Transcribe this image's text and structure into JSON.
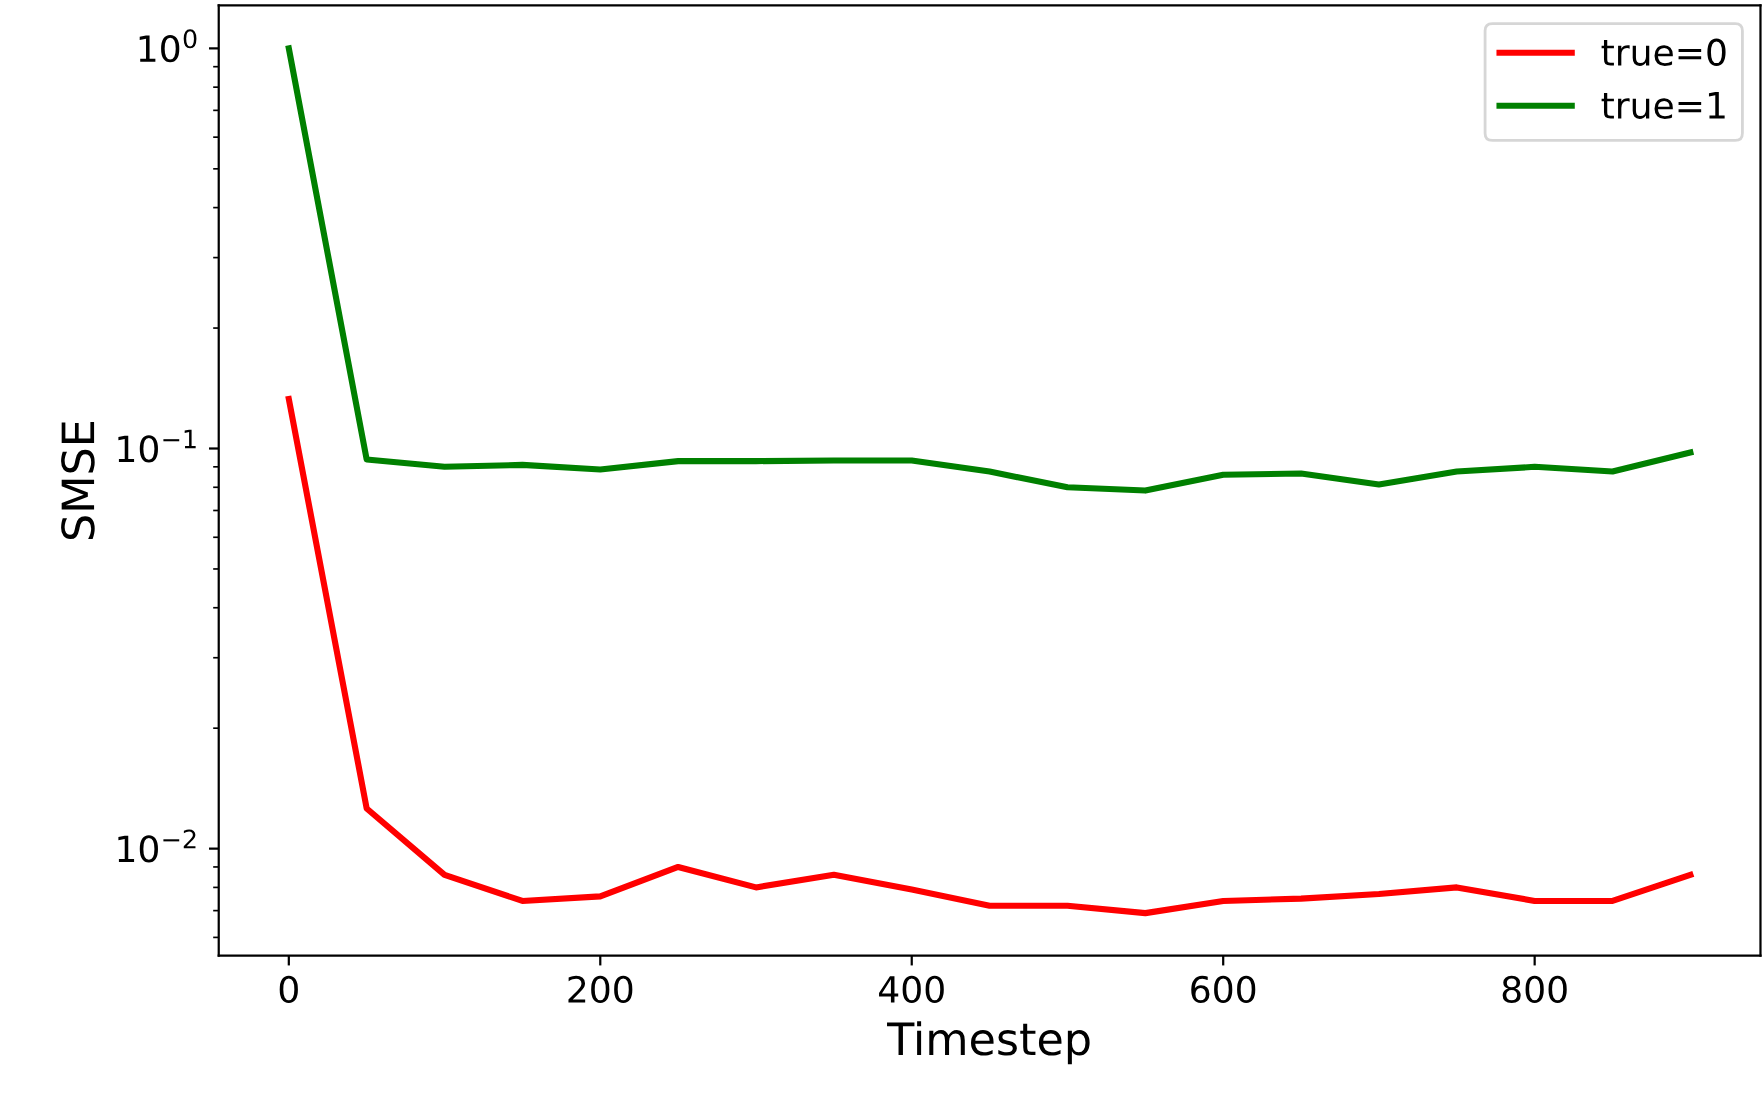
{
  "chart_data": {
    "type": "line",
    "xlabel": "Timestep",
    "ylabel": "SMSE",
    "x": [
      0,
      50,
      100,
      150,
      200,
      250,
      300,
      350,
      400,
      450,
      500,
      550,
      600,
      650,
      700,
      750,
      800,
      850,
      900
    ],
    "series": [
      {
        "name": "true=0",
        "color": "#ff0000",
        "values": [
          0.133,
          0.0126,
          0.0086,
          0.0074,
          0.0076,
          0.009,
          0.008,
          0.0086,
          0.0079,
          0.0072,
          0.0072,
          0.0069,
          0.0074,
          0.0075,
          0.0077,
          0.008,
          0.0074,
          0.0074,
          0.0086
        ]
      },
      {
        "name": "true=1",
        "color": "#008000",
        "values": [
          1.0,
          0.0939,
          0.09,
          0.091,
          0.0886,
          0.093,
          0.093,
          0.0933,
          0.0933,
          0.0876,
          0.08,
          0.0785,
          0.086,
          0.0866,
          0.0813,
          0.0876,
          0.09,
          0.0876,
          0.0977
        ]
      }
    ],
    "log": "y",
    "xlim": [
      -45,
      945
    ],
    "xticks": [
      0,
      200,
      400,
      600,
      800
    ],
    "ylim": [
      0.0054,
      1.28
    ],
    "yticks": [
      {
        "value": 0.01,
        "label": "10$^{−2}$"
      },
      {
        "value": 0.1,
        "label": "10$^{−1}$"
      },
      {
        "value": 1,
        "label": "10$^{0}$"
      }
    ],
    "grid": false,
    "legend": "top right",
    "line_style": "solid",
    "marker": "none"
  }
}
